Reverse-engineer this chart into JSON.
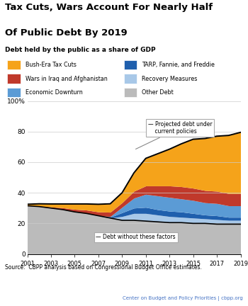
{
  "title_line1": "Tax Cuts, Wars Account For Nearly Half",
  "title_line2": "Of Public Debt By 2019",
  "subtitle": "Debt held by the public as a share of GDP",
  "source": "Source:  CBPP analysis based on Congressional Budget Office estimates.",
  "credit": "Center on Budget and Policy Priorities | cbpp.org",
  "years": [
    2001,
    2002,
    2003,
    2004,
    2005,
    2006,
    2007,
    2008,
    2009,
    2010,
    2011,
    2012,
    2013,
    2014,
    2015,
    2016,
    2017,
    2018,
    2019
  ],
  "other_debt": [
    31.5,
    31.0,
    30.0,
    29.0,
    27.5,
    26.5,
    25.0,
    23.5,
    22.0,
    22.0,
    21.5,
    21.0,
    20.5,
    20.5,
    20.0,
    20.0,
    19.5,
    19.5,
    19.5
  ],
  "recovery_measures": [
    0,
    0,
    0,
    0,
    0,
    0,
    0,
    0,
    2.5,
    4.5,
    5.0,
    4.5,
    4.0,
    3.5,
    3.5,
    3.0,
    3.0,
    2.5,
    2.5
  ],
  "tarp_fannie_freddie": [
    0,
    0,
    0,
    0,
    0,
    0,
    0,
    0.5,
    2.5,
    3.5,
    4.0,
    3.5,
    3.5,
    3.5,
    3.0,
    2.5,
    2.5,
    2.0,
    2.0
  ],
  "economic_downturn": [
    0,
    0,
    0,
    0,
    0,
    0,
    0,
    0.5,
    3.5,
    6.5,
    8.5,
    9.0,
    9.0,
    8.5,
    8.5,
    8.0,
    8.0,
    7.5,
    7.5
  ],
  "wars": [
    0,
    0.3,
    0.7,
    1.2,
    1.7,
    2.2,
    2.5,
    2.8,
    3.0,
    4.5,
    5.5,
    6.5,
    7.5,
    8.0,
    8.0,
    8.0,
    8.0,
    8.0,
    8.0
  ],
  "bush_tax_cuts": [
    1.0,
    1.5,
    2.0,
    2.5,
    3.5,
    4.0,
    5.0,
    5.5,
    6.5,
    12.0,
    18.0,
    21.0,
    24.0,
    28.0,
    32.0,
    34.0,
    36.0,
    38.0,
    40.0
  ],
  "debt_without": [
    31.5,
    31.0,
    30.0,
    29.0,
    27.5,
    26.5,
    25.0,
    23.5,
    22.0,
    22.0,
    21.5,
    21.0,
    20.5,
    20.5,
    20.0,
    20.0,
    19.5,
    19.5,
    19.5
  ],
  "colors": {
    "bush_tax_cuts": "#F5A31A",
    "wars": "#C0392B",
    "economic_downturn": "#5B9BD5",
    "tarp_fannie_freddie": "#1F5FAD",
    "recovery_measures": "#A8C8E8",
    "other_debt": "#BBBBBB"
  },
  "legend_items": [
    {
      "label": "Bush-Era Tax Cuts",
      "color": "#F5A31A"
    },
    {
      "label": "TARP, Fannie, and Freddie",
      "color": "#1F5FAD"
    },
    {
      "label": "Wars in Iraq and Afghanistan",
      "color": "#C0392B"
    },
    {
      "label": "Recovery Measures",
      "color": "#A8C8E8"
    },
    {
      "label": "Economic Downturn",
      "color": "#5B9BD5"
    },
    {
      "label": "Other Debt",
      "color": "#BBBBBB"
    }
  ],
  "ylim": [
    0,
    100
  ],
  "yticks": [
    0,
    20,
    40,
    60,
    80,
    100
  ],
  "ytick_labels": [
    "0",
    "20",
    "40",
    "60",
    "80",
    "100%"
  ]
}
